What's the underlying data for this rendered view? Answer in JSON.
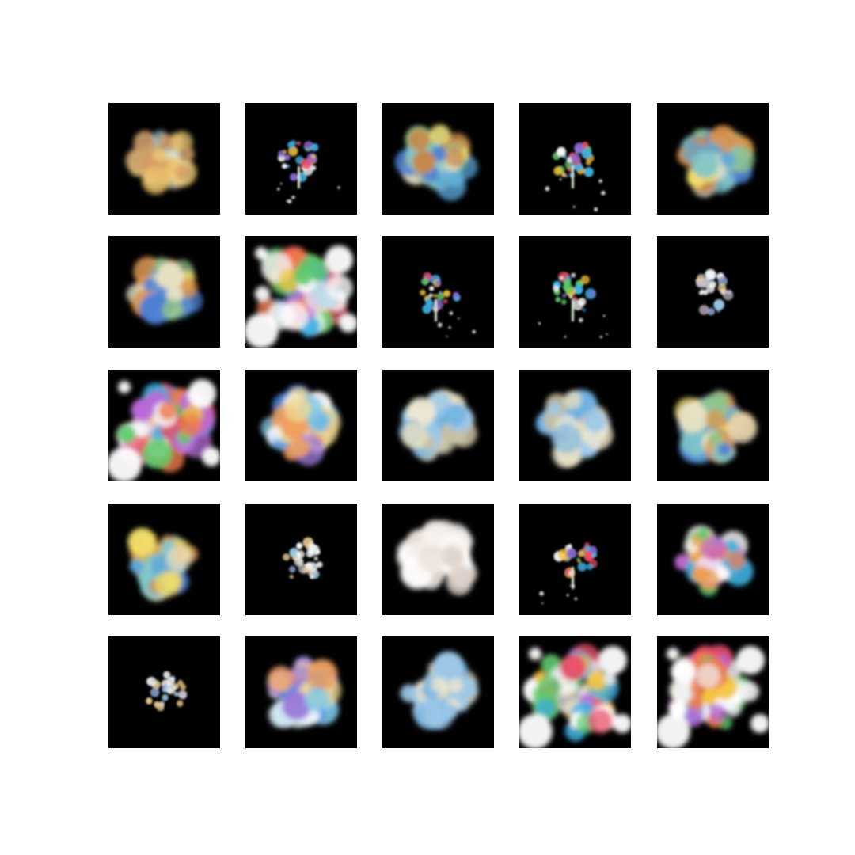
{
  "grid": {
    "rows": 5,
    "columns": 5,
    "tiles": [
      {
        "row": 0,
        "col": 0,
        "kind": "blob-warm"
      },
      {
        "row": 0,
        "col": 1,
        "kind": "sparse-figure"
      },
      {
        "row": 0,
        "col": 2,
        "kind": "blob-large"
      },
      {
        "row": 0,
        "col": 3,
        "kind": "sparse-figure"
      },
      {
        "row": 0,
        "col": 4,
        "kind": "blob-large"
      },
      {
        "row": 1,
        "col": 0,
        "kind": "blob-large"
      },
      {
        "row": 1,
        "col": 1,
        "kind": "blob-colorful-wide"
      },
      {
        "row": 1,
        "col": 2,
        "kind": "sparse-figure"
      },
      {
        "row": 1,
        "col": 3,
        "kind": "sparse-figure"
      },
      {
        "row": 1,
        "col": 4,
        "kind": "sparse-pale"
      },
      {
        "row": 2,
        "col": 0,
        "kind": "blob-colorful-wide"
      },
      {
        "row": 2,
        "col": 1,
        "kind": "blob-blue"
      },
      {
        "row": 2,
        "col": 2,
        "kind": "blob-pale-blue"
      },
      {
        "row": 2,
        "col": 3,
        "kind": "blob-pale-blue"
      },
      {
        "row": 2,
        "col": 4,
        "kind": "blob-large"
      },
      {
        "row": 3,
        "col": 0,
        "kind": "blob-large"
      },
      {
        "row": 3,
        "col": 1,
        "kind": "sparse-pale"
      },
      {
        "row": 3,
        "col": 2,
        "kind": "blob-white"
      },
      {
        "row": 3,
        "col": 3,
        "kind": "sparse-figure"
      },
      {
        "row": 3,
        "col": 4,
        "kind": "blob-colorful"
      },
      {
        "row": 4,
        "col": 0,
        "kind": "sparse-pale"
      },
      {
        "row": 4,
        "col": 1,
        "kind": "blob-blue"
      },
      {
        "row": 4,
        "col": 2,
        "kind": "blob-pale-blue"
      },
      {
        "row": 4,
        "col": 3,
        "kind": "blob-colorful-wide"
      },
      {
        "row": 4,
        "col": 4,
        "kind": "blob-colorful-wide"
      }
    ]
  },
  "colors": {
    "page_background": "#ffffff",
    "tile_background": "#000000"
  }
}
